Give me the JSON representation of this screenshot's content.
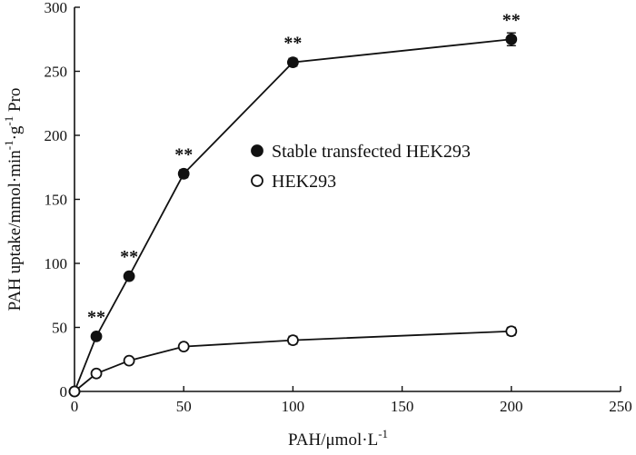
{
  "chart_data": {
    "type": "line",
    "title": "",
    "xlabel_text": "PAH/μmol·L",
    "xlabel_sup": "-1",
    "ylabel_parts": [
      {
        "text": "PAH uptake/mmol·min",
        "sup": false
      },
      {
        "text": "-1",
        "sup": true
      },
      {
        "text": "·g",
        "sup": false
      },
      {
        "text": "-1",
        "sup": true
      },
      {
        "text": " Pro",
        "sup": false
      }
    ],
    "xlim": [
      0,
      250
    ],
    "ylim": [
      0,
      300
    ],
    "xticks": [
      0,
      50,
      100,
      150,
      200,
      250
    ],
    "yticks": [
      0,
      50,
      100,
      150,
      200,
      250,
      300
    ],
    "grid": false,
    "legend_position": "center-right",
    "series": [
      {
        "name": "Stable transfected HEK293",
        "marker": "filled-circle",
        "color": "#111111",
        "x": [
          0,
          10,
          25,
          50,
          100,
          200
        ],
        "y": [
          0,
          43,
          90,
          170,
          257,
          275
        ],
        "error": [
          0,
          2,
          2,
          3,
          3,
          5
        ]
      },
      {
        "name": "HEK293",
        "marker": "open-circle",
        "color": "#111111",
        "x": [
          0,
          10,
          25,
          50,
          100,
          200
        ],
        "y": [
          0,
          14,
          24,
          35,
          40,
          47
        ],
        "error": [
          0,
          1,
          1,
          2,
          3,
          3
        ]
      }
    ],
    "annotations": [
      {
        "text": "**",
        "x": 10,
        "y": 43
      },
      {
        "text": "**",
        "x": 25,
        "y": 90
      },
      {
        "text": "**",
        "x": 50,
        "y": 170
      },
      {
        "text": "**",
        "x": 100,
        "y": 257
      },
      {
        "text": "**",
        "x": 200,
        "y": 275
      }
    ]
  }
}
